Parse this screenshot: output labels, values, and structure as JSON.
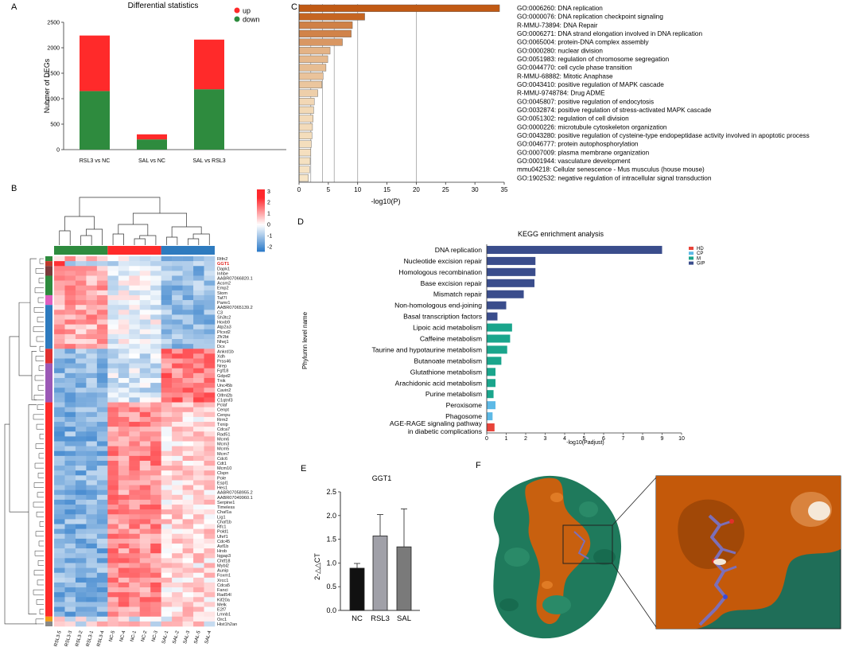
{
  "panel_letters": [
    "A",
    "B",
    "C",
    "D",
    "E",
    "F"
  ],
  "colors": {
    "up": "#ff2a2a",
    "down": "#2e8b3e",
    "navy": "#3a4d8c",
    "teal": "#1aa58c",
    "lightblue": "#5db9e6",
    "red": "#e8443a"
  },
  "chart_data": [
    {
      "id": "A",
      "type": "bar",
      "title": "Differential statistics",
      "ylabel": "Nubmer of DEGs",
      "xlabel": "",
      "ylim": [
        0,
        2500
      ],
      "yticks": [
        0,
        500,
        1000,
        1500,
        2000,
        2500
      ],
      "categories": [
        "RSL3 vs NC",
        "SAL vs NC",
        "SAL vs RSL3"
      ],
      "series": [
        {
          "name": "down",
          "values": [
            1150,
            200,
            1185
          ]
        },
        {
          "name": "up",
          "values": [
            1090,
            100,
            975
          ]
        }
      ],
      "legend": [
        "up",
        "down"
      ],
      "legend_position": "top-right"
    },
    {
      "id": "B",
      "type": "heatmap",
      "columns": [
        "RSL3-5",
        "RSL3-3",
        "RSL3-2",
        "RSL3-1",
        "RSL3-4",
        "NC-5",
        "NC-4",
        "NC-1",
        "NC-2",
        "NC-3",
        "SAL-1",
        "SAL-2",
        "SAL-3",
        "SAL-5",
        "SAL-4"
      ],
      "rows": [
        "Rtfn2",
        "GGT1",
        "Dapk1",
        "Inhbe",
        "AABR07066820.1",
        "Acsm2",
        "Emp2",
        "Stom",
        "Taf7l",
        "Pamr1",
        "AABR07065139.2",
        "C3",
        "Sh3tc2",
        "Hoxb9",
        "Atp2a3",
        "Plcxd2",
        "Zfr2bt",
        "Nhej1",
        "Dcx",
        "Ankrd1b",
        "Xdh",
        "Prss46",
        "Nrep",
        "Fgf18",
        "Gdpd2",
        "Tnik",
        "Unc45b",
        "Cavin2",
        "Olfml2b",
        "C1qtnf3",
        "Pclaf",
        "Cenpt",
        "Cenpu",
        "Rrm2",
        "Txnip",
        "Cdca7",
        "Rad51",
        "Mcm6",
        "Mcm3",
        "Mcm5",
        "Mcm7",
        "Cdc6",
        "Cdt1",
        "Mcm10",
        "Clspn",
        "Pole",
        "Espl1",
        "Hes1",
        "AABR07058955.2",
        "AABR07049960.1",
        "Serpine1",
        "Timeless",
        "Chaf1a",
        "Lig1",
        "Chaf1b",
        "Rfc1",
        "Pold1",
        "Uhrf1",
        "Cdc45",
        "Asf1b",
        "Hrob",
        "Iqgap3",
        "Chtf18",
        "Mybl2",
        "Aunip",
        "Foxm1",
        "Xrcc1",
        "Cdca5",
        "Fanci",
        "Rad54l",
        "Kif20a",
        "Melk",
        "E2f7",
        "Lmnb1",
        "Orc1",
        "Hist1h2an"
      ],
      "highlight_row": "GGT1",
      "scale_ticks": [
        "3",
        "2",
        "1",
        "0",
        "-1",
        "-2"
      ],
      "col_groups": [
        {
          "name": "RSL3",
          "color": "#2e8b3e"
        },
        {
          "name": "NC",
          "color": "#ff2a2a"
        },
        {
          "name": "SAL",
          "color": "#2e7bbf"
        }
      ]
    },
    {
      "id": "C",
      "type": "bar",
      "orientation": "horizontal",
      "xlabel": "-log10(P)",
      "xlim": [
        0,
        35
      ],
      "xticks": [
        0,
        5,
        10,
        15,
        20,
        25,
        30,
        35
      ],
      "categories": [
        "GO:0006260: DNA replication",
        "GO:0000076: DNA replication checkpoint signaling",
        "R-MMU-73894: DNA Repair",
        "GO:0006271: DNA strand elongation involved in DNA replication",
        "GO:0065004: protein-DNA complex assembly",
        "GO:0000280: nuclear division",
        "GO:0051983: regulation of chromosome segregation",
        "GO:0044770: cell cycle phase transition",
        "R-MMU-68882: Mitotic Anaphase",
        "GO:0043410: positive regulation of MAPK cascade",
        "R-MMU-9748784: Drug ADME",
        "GO:0045807: positive regulation of endocytosis",
        "GO:0032874: positive regulation of stress-activated MAPK cascade",
        "GO:0051302: regulation of cell division",
        "GO:0000226: microtubule cytoskeleton organization",
        "GO:0043280: positive regulation of cysteine-type endopeptidase activity involved in apoptotic process",
        "GO:0046777: protein autophosphorylation",
        "GO:0007009: plasma membrane organization",
        "GO:0001944: vasculature development",
        "mmu04218: Cellular senescence - Mus musculus (house mouse)",
        "GO:1902532: negative regulation of intracellular signal transduction"
      ],
      "values": [
        34.2,
        11.2,
        9.1,
        8.9,
        7.4,
        5.3,
        4.9,
        4.6,
        4.1,
        3.9,
        3.2,
        2.6,
        2.5,
        2.4,
        2.3,
        2.2,
        2.1,
        2.0,
        1.9,
        1.8,
        1.6
      ],
      "reference_lines": [
        2,
        4,
        6,
        10,
        20
      ]
    },
    {
      "id": "D",
      "type": "bar",
      "orientation": "horizontal",
      "title": "KEGG enrichment analysis",
      "xlabel": "-log10(Padjust)",
      "ylabel": "Phylumn level name",
      "xlim": [
        0,
        10
      ],
      "xticks": [
        0,
        1,
        2,
        3,
        4,
        5,
        6,
        7,
        8,
        9,
        10
      ],
      "categories": [
        "DNA replication",
        "Nucleotide excision repair",
        "Homologous recombination",
        "Base excision repair",
        "Mismatch repair",
        "Non-homologous end-joining",
        "Basal transcription factors",
        "Lipoic acid metabolism",
        "Caffeine metabolism",
        "Taurine and hypotaurine metabolism",
        "Butanoate metabolism",
        "Glutathione metabolism",
        "Arachidonic acid metabolism",
        "Purine metabolism",
        "Peroxisome",
        "Phagosome",
        "AGE-RAGE signaling pathway in diabetic complications"
      ],
      "label_lines": [
        [
          "DNA replication"
        ],
        [
          "Nucleotide excision repair"
        ],
        [
          "Homologous recombination"
        ],
        [
          "Base excision repair"
        ],
        [
          "Mismatch repair"
        ],
        [
          "Non-homologous end-joining"
        ],
        [
          "Basal transcription factors"
        ],
        [
          "Lipoic acid metabolism"
        ],
        [
          "Caffeine metabolism"
        ],
        [
          "Taurine and hypotaurine metabolism"
        ],
        [
          "Butanoate metabolism"
        ],
        [
          "Glutathione metabolism"
        ],
        [
          "Arachidonic acid metabolism"
        ],
        [
          "Purine metabolism"
        ],
        [
          "Peroxisome"
        ],
        [
          "Phagosome"
        ],
        [
          "AGE-RAGE signaling pathway",
          "in diabetic complications"
        ]
      ],
      "values": [
        9.0,
        2.5,
        2.5,
        2.45,
        1.9,
        1.0,
        0.55,
        1.3,
        1.2,
        1.05,
        0.75,
        0.45,
        0.45,
        0.35,
        0.45,
        0.3,
        0.4
      ],
      "groups": [
        "GIP",
        "GIP",
        "GIP",
        "GIP",
        "GIP",
        "GIP",
        "GIP",
        "M",
        "M",
        "M",
        "M",
        "M",
        "M",
        "M",
        "CP",
        "CP",
        "HD"
      ],
      "legend": [
        {
          "name": "HD",
          "color": "#e8443a"
        },
        {
          "name": "CP",
          "color": "#5db9e6"
        },
        {
          "name": "M",
          "color": "#1aa58c"
        },
        {
          "name": "GIP",
          "color": "#3a4d8c"
        }
      ],
      "legend_position": "top-right"
    },
    {
      "id": "E",
      "type": "bar",
      "title": "GGT1",
      "ylabel": "2-△△CT",
      "ylim": [
        0,
        2.5
      ],
      "yticks": [
        "0.0",
        "0.5",
        "1.0",
        "1.5",
        "2.0",
        "2.5"
      ],
      "categories": [
        "NC",
        "RSL3",
        "SAL"
      ],
      "values": [
        0.89,
        1.57,
        1.34
      ],
      "errors": [
        0.1,
        0.45,
        0.8
      ],
      "bar_colors": [
        "#111111",
        "#a0a0a8",
        "#7a7a7a"
      ]
    }
  ],
  "panel_f": {
    "caption": "F"
  }
}
